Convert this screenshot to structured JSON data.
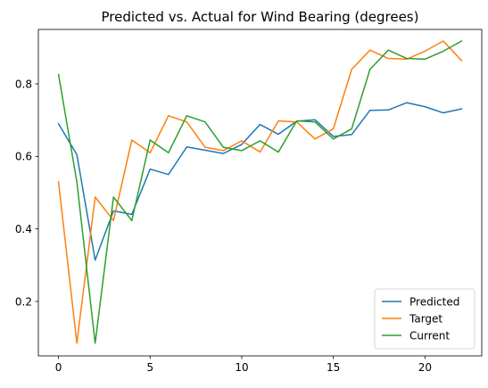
{
  "chart_data": {
    "type": "line",
    "title": "Predicted vs. Actual for Wind Bearing (degrees)",
    "xlabel": "",
    "ylabel": "",
    "xlim": [
      -1.1,
      23.1
    ],
    "ylim": [
      0.05,
      0.95
    ],
    "xticks": [
      0,
      5,
      10,
      15,
      20
    ],
    "yticks": [
      0.2,
      0.4,
      0.6,
      0.8
    ],
    "x": [
      0,
      1,
      2,
      3,
      4,
      5,
      6,
      7,
      8,
      9,
      10,
      11,
      12,
      13,
      14,
      15,
      16,
      17,
      18,
      19,
      20,
      21,
      22
    ],
    "legend_position": "lower-right",
    "grid": false,
    "series": [
      {
        "name": "Predicted",
        "color": "#1f77b4",
        "values": [
          0.69,
          0.605,
          0.314,
          0.45,
          0.44,
          0.565,
          0.55,
          0.626,
          0.617,
          0.608,
          0.633,
          0.688,
          0.661,
          0.697,
          0.701,
          0.655,
          0.66,
          0.727,
          0.728,
          0.748,
          0.737,
          0.72,
          0.731
        ]
      },
      {
        "name": "Target",
        "color": "#ff7f0e",
        "values": [
          0.53,
          0.085,
          0.488,
          0.423,
          0.645,
          0.61,
          0.712,
          0.695,
          0.625,
          0.616,
          0.643,
          0.612,
          0.698,
          0.695,
          0.648,
          0.676,
          0.84,
          0.893,
          0.87,
          0.868,
          0.89,
          0.918,
          0.864
        ]
      },
      {
        "name": "Current",
        "color": "#2ca02c",
        "values": [
          0.826,
          0.53,
          0.085,
          0.488,
          0.423,
          0.645,
          0.61,
          0.712,
          0.695,
          0.625,
          0.616,
          0.643,
          0.612,
          0.698,
          0.695,
          0.648,
          0.676,
          0.84,
          0.893,
          0.87,
          0.868,
          0.89,
          0.918
        ]
      }
    ]
  }
}
